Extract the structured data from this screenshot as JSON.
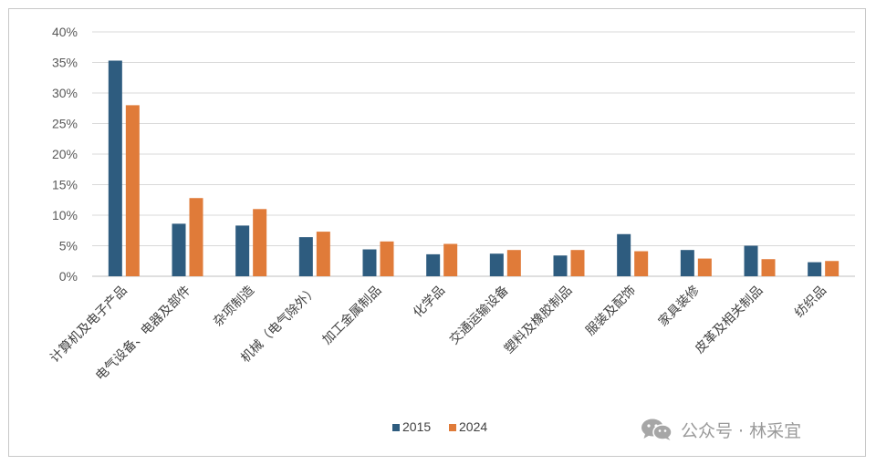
{
  "chart_data": {
    "type": "bar",
    "categories": [
      "计算机及电子产品",
      "电气设备、电器及部件",
      "杂项制造",
      "机械（电气除外）",
      "加工金属制品",
      "化学品",
      "交通运输设备",
      "塑料及橡胶制品",
      "服装及配饰",
      "家具装修",
      "皮革及相关制品",
      "纺织品"
    ],
    "series": [
      {
        "name": "2015",
        "color": "#2e5c7f",
        "values": [
          35.3,
          8.6,
          8.3,
          6.4,
          4.4,
          3.6,
          3.7,
          3.4,
          6.9,
          4.3,
          5.0,
          2.3
        ]
      },
      {
        "name": "2024",
        "color": "#e07b39",
        "values": [
          28.0,
          12.8,
          11.0,
          7.3,
          5.7,
          5.3,
          4.3,
          4.3,
          4.1,
          2.9,
          2.8,
          2.5
        ]
      }
    ],
    "y_ticks": [
      "0%",
      "5%",
      "10%",
      "15%",
      "20%",
      "25%",
      "30%",
      "35%",
      "40%"
    ],
    "ylim": [
      0,
      40
    ],
    "grid": true,
    "legend": "bottom-center",
    "title": "",
    "xlabel": "",
    "ylabel": ""
  },
  "watermark": {
    "text": "公众号 · 林采宜",
    "icon": "wechat-icon"
  }
}
